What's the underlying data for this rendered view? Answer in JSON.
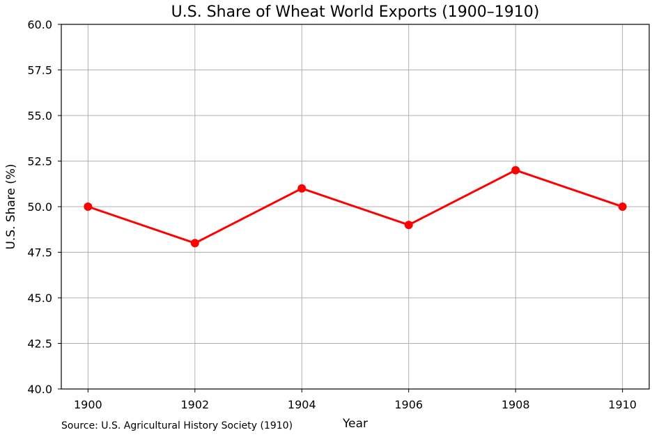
{
  "chart_data": {
    "type": "line",
    "title": "U.S. Share of Wheat World Exports (1900–1910)",
    "xlabel": "Year",
    "ylabel": "U.S. Share (%)",
    "source": "Source: U.S. Agricultural History Society (1910)",
    "x": [
      1900,
      1902,
      1904,
      1906,
      1908,
      1910
    ],
    "series": [
      {
        "values": [
          50,
          48,
          51,
          49,
          52,
          50
        ],
        "color": "#ff0000",
        "marker": "circle"
      }
    ],
    "xlim": [
      1899.5,
      1910.5
    ],
    "ylim": [
      40,
      60
    ],
    "xticks": [
      "1900",
      "1902",
      "1904",
      "1906",
      "1908",
      "1910"
    ],
    "yticks": [
      "40.0",
      "42.5",
      "45.0",
      "47.5",
      "50.0",
      "52.5",
      "55.0",
      "57.5",
      "60.0"
    ],
    "grid": true,
    "legend": false
  }
}
